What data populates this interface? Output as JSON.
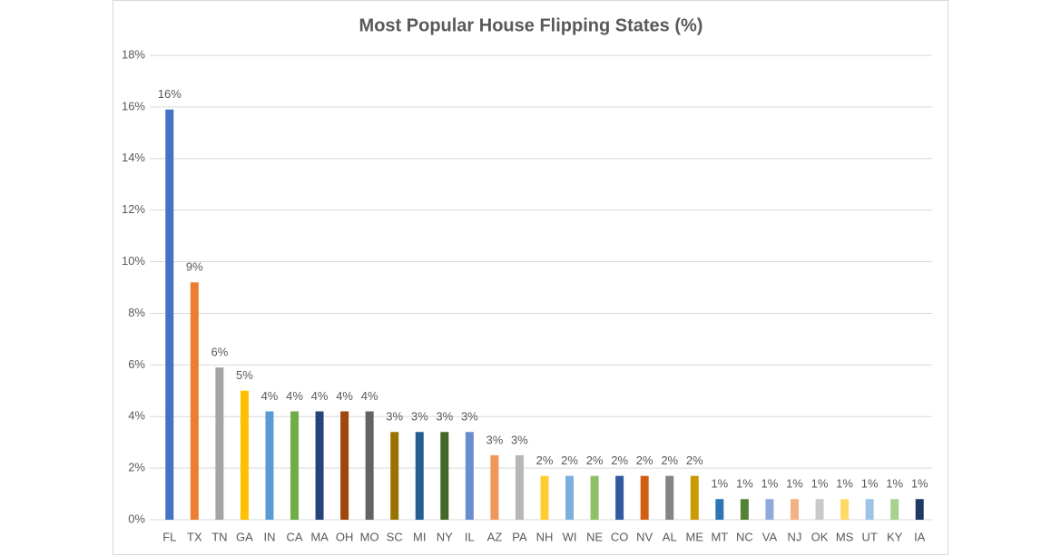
{
  "chart_data": {
    "type": "bar",
    "title": "Most Popular House Flipping States (%)",
    "categories": [
      "FL",
      "TX",
      "TN",
      "GA",
      "IN",
      "CA",
      "MA",
      "OH",
      "MO",
      "SC",
      "MI",
      "NY",
      "IL",
      "AZ",
      "PA",
      "NH",
      "WI",
      "NE",
      "CO",
      "NV",
      "AL",
      "ME",
      "MT",
      "NC",
      "VA",
      "NJ",
      "OK",
      "MS",
      "UT",
      "KY",
      "IA"
    ],
    "values": [
      15.9,
      9.2,
      5.9,
      5.0,
      4.2,
      4.2,
      4.2,
      4.2,
      4.2,
      3.4,
      3.4,
      3.4,
      3.4,
      2.5,
      2.5,
      1.7,
      1.7,
      1.7,
      1.7,
      1.7,
      1.7,
      1.7,
      0.8,
      0.8,
      0.8,
      0.8,
      0.8,
      0.8,
      0.8,
      0.8,
      0.8
    ],
    "value_labels": [
      "16%",
      "9%",
      "6%",
      "5%",
      "4%",
      "4%",
      "4%",
      "4%",
      "4%",
      "3%",
      "3%",
      "3%",
      "3%",
      "3%",
      "3%",
      "2%",
      "2%",
      "2%",
      "2%",
      "2%",
      "2%",
      "2%",
      "1%",
      "1%",
      "1%",
      "1%",
      "1%",
      "1%",
      "1%",
      "1%",
      "1%"
    ],
    "colors": [
      "#4472c4",
      "#ed7d31",
      "#a5a5a5",
      "#ffc000",
      "#5b9bd5",
      "#70ad47",
      "#264478",
      "#9e480e",
      "#636363",
      "#997300",
      "#255e91",
      "#43682b",
      "#698ed0",
      "#f1975a",
      "#b7b7b7",
      "#ffcd33",
      "#7cafdd",
      "#8cc168",
      "#335aa1",
      "#d26012",
      "#848484",
      "#cc9a00",
      "#2e75b6",
      "#548235",
      "#8faadc",
      "#f4b183",
      "#c9c9c9",
      "#ffd966",
      "#9dc3e6",
      "#a9d18e",
      "#203864"
    ],
    "ylim": [
      0,
      18
    ],
    "yticks": [
      {
        "value": 0,
        "label": "0%"
      },
      {
        "value": 2,
        "label": "2%"
      },
      {
        "value": 4,
        "label": "4%"
      },
      {
        "value": 6,
        "label": "6%"
      },
      {
        "value": 8,
        "label": "8%"
      },
      {
        "value": 10,
        "label": "10%"
      },
      {
        "value": 12,
        "label": "12%"
      },
      {
        "value": 14,
        "label": "14%"
      },
      {
        "value": 16,
        "label": "16%"
      },
      {
        "value": 18,
        "label": "18%"
      }
    ],
    "grid": true
  }
}
